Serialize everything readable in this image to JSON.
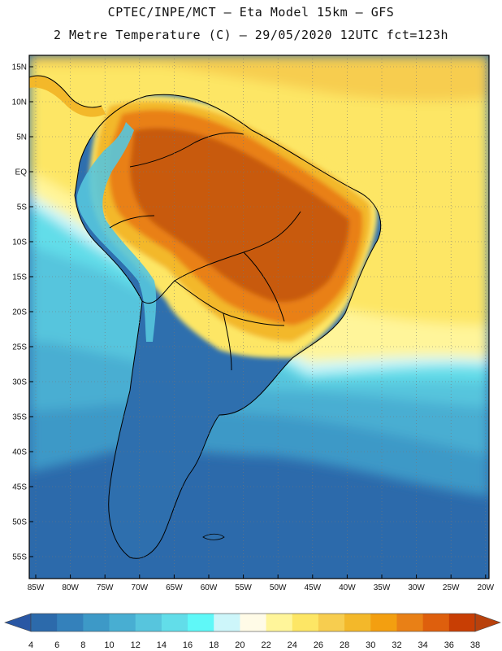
{
  "header": {
    "line1": "CPTEC/INPE/MCT –  Eta Model 15km – GFS",
    "line2": "2 Metre Temperature (C) – 29/05/2020 12UTC fct=123h"
  },
  "map": {
    "lat_labels": [
      "15N",
      "10N",
      "5N",
      "EQ",
      "5S",
      "10S",
      "15S",
      "20S",
      "25S",
      "30S",
      "35S",
      "40S",
      "45S",
      "50S",
      "55S"
    ],
    "lon_labels": [
      "85W",
      "80W",
      "75W",
      "70W",
      "65W",
      "60W",
      "55W",
      "50W",
      "45W",
      "40W",
      "35W",
      "30W",
      "25W",
      "20W"
    ]
  },
  "colorbar": {
    "labels": [
      "4",
      "6",
      "8",
      "10",
      "12",
      "14",
      "16",
      "18",
      "20",
      "22",
      "24",
      "26",
      "28",
      "30",
      "32",
      "34",
      "36",
      "38"
    ],
    "colors": [
      "#2c6aab",
      "#3481bb",
      "#3d99c7",
      "#48aed2",
      "#57c5dd",
      "#62dde9",
      "#5ff8f8",
      "#cdf6fa",
      "#fffbe7",
      "#fff59a",
      "#fde665",
      "#f7cd4f",
      "#f3b82a",
      "#f39f10",
      "#e98016",
      "#de5f0d",
      "#c83e04"
    ],
    "low_color": "#2957a4",
    "high_color": "#b8410c"
  },
  "colors": {
    "ocean_cold": "#2c6aab",
    "ocean_mid": "#48aed2",
    "ocean_warm": "#fde665",
    "land_hot": "#c85a10",
    "andes": "#2e6fae",
    "frame": "#000000"
  }
}
